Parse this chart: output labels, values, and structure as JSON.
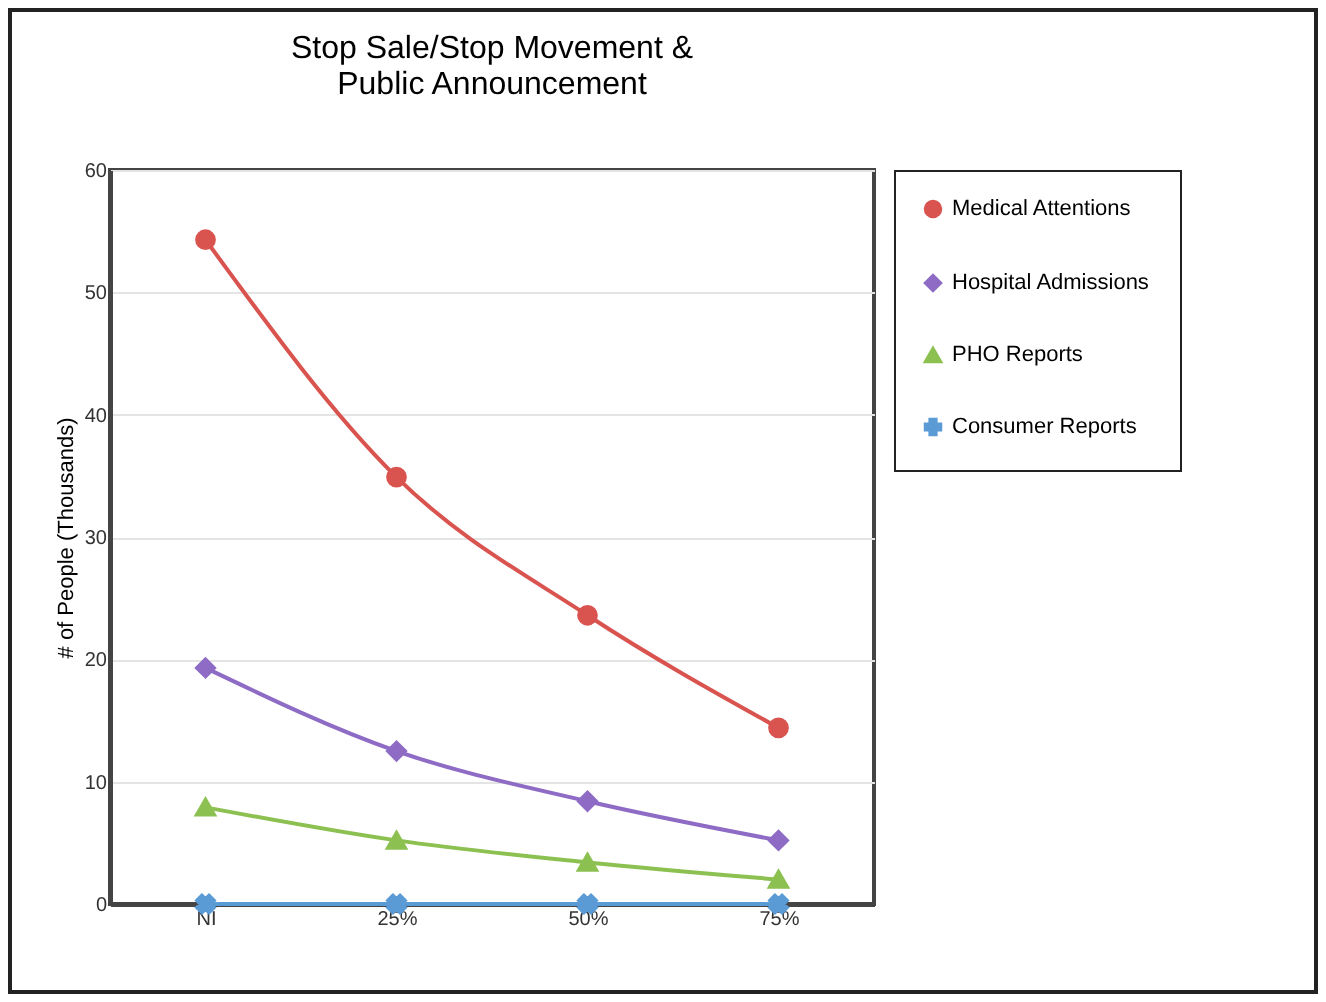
{
  "chart_data": {
    "type": "line",
    "title": "Stop Sale/Stop Movement &\nPublic Announcement",
    "ylabel": "# of People (Thousands)",
    "categories": [
      "NI",
      "25%",
      "50%",
      "75%"
    ],
    "series": [
      {
        "name": "Medical Attentions",
        "color": "#d9534f",
        "marker": "circle",
        "values": [
          54.3,
          34.9,
          23.6,
          14.4
        ]
      },
      {
        "name": "Hospital Admissions",
        "color": "#8e6bc4",
        "marker": "diamond",
        "values": [
          19.3,
          12.5,
          8.4,
          5.2
        ]
      },
      {
        "name": "PHO Reports",
        "color": "#8cc152",
        "marker": "triangle",
        "values": [
          7.9,
          5.2,
          3.4,
          2.0
        ]
      },
      {
        "name": "Consumer Reports",
        "color": "#5b9bd5",
        "marker": "cross",
        "values": [
          0,
          0,
          0,
          0
        ]
      }
    ],
    "ylim": [
      0,
      60
    ],
    "yticks": [
      0,
      10,
      20,
      30,
      40,
      50,
      60
    ],
    "grid": "y",
    "legend": "right"
  }
}
